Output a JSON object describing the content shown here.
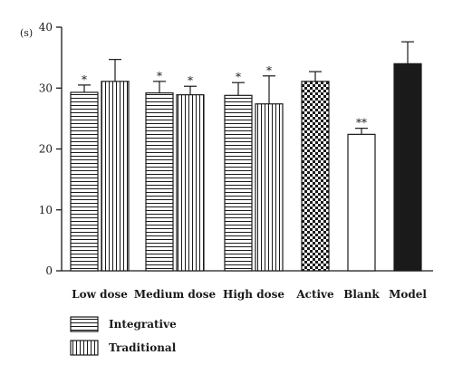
{
  "chart_data": {
    "type": "bar",
    "ylabel": "(s)",
    "ylim": [
      0,
      40
    ],
    "yticks": [
      "0",
      "10",
      "20",
      "30",
      "40"
    ],
    "categories": [
      "Low dose",
      "Medium dose",
      "High dose",
      "Active",
      "Blank",
      "Model"
    ],
    "series": [
      {
        "name": "Integrative",
        "pattern": "horizontal-stripes",
        "points": [
          {
            "category": "Low dose",
            "value": 29.3,
            "error": 1.2,
            "sig": "*"
          },
          {
            "category": "Medium dose",
            "value": 29.2,
            "error": 1.9,
            "sig": "*"
          },
          {
            "category": "High dose",
            "value": 28.8,
            "error": 2.1,
            "sig": "*"
          }
        ]
      },
      {
        "name": "Traditional",
        "pattern": "vertical-stripes",
        "points": [
          {
            "category": "Low dose",
            "value": 31.1,
            "error": 3.6,
            "sig": ""
          },
          {
            "category": "Medium dose",
            "value": 28.9,
            "error": 1.4,
            "sig": "*"
          },
          {
            "category": "High dose",
            "value": 27.4,
            "error": 4.6,
            "sig": "*"
          }
        ]
      },
      {
        "name": "",
        "pattern": "various",
        "points": [
          {
            "category": "Active",
            "value": 31.1,
            "error": 1.6,
            "sig": "",
            "pattern": "checkerboard"
          },
          {
            "category": "Blank",
            "value": 22.4,
            "error": 1.0,
            "sig": "**",
            "pattern": "white"
          },
          {
            "category": "Model",
            "value": 34.0,
            "error": 3.6,
            "sig": "",
            "pattern": "black"
          }
        ]
      }
    ],
    "legend": {
      "position": "bottom-left",
      "entries": [
        {
          "label": "Integrative",
          "pattern": "horizontal-stripes"
        },
        {
          "label": "Traditional",
          "pattern": "vertical-stripes"
        }
      ]
    },
    "grid": false
  }
}
